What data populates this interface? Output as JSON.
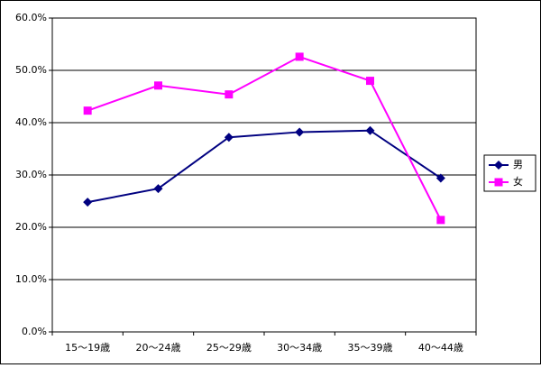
{
  "chart_data": {
    "type": "line",
    "categories": [
      "15〜19歳",
      "20〜24歳",
      "25〜29歳",
      "30〜34歳",
      "35〜39歳",
      "40〜44歳"
    ],
    "series": [
      {
        "name": "男",
        "color": "#000080",
        "marker": "diamond",
        "values": [
          24.8,
          27.4,
          37.2,
          38.2,
          38.5,
          29.4
        ]
      },
      {
        "name": "女",
        "color": "#ff00ff",
        "marker": "square",
        "values": [
          42.3,
          47.1,
          45.4,
          52.6,
          48.0,
          21.4
        ]
      }
    ],
    "ylim": [
      0,
      60
    ],
    "yticks": [
      {
        "value": 0,
        "label": "0.0%"
      },
      {
        "value": 10,
        "label": "10.0%"
      },
      {
        "value": 20,
        "label": "20.0%"
      },
      {
        "value": 30,
        "label": "30.0%"
      },
      {
        "value": 40,
        "label": "40.0%"
      },
      {
        "value": 50,
        "label": "50.0%"
      },
      {
        "value": 60,
        "label": "60.0%"
      }
    ],
    "grid": true,
    "legend": "right"
  }
}
